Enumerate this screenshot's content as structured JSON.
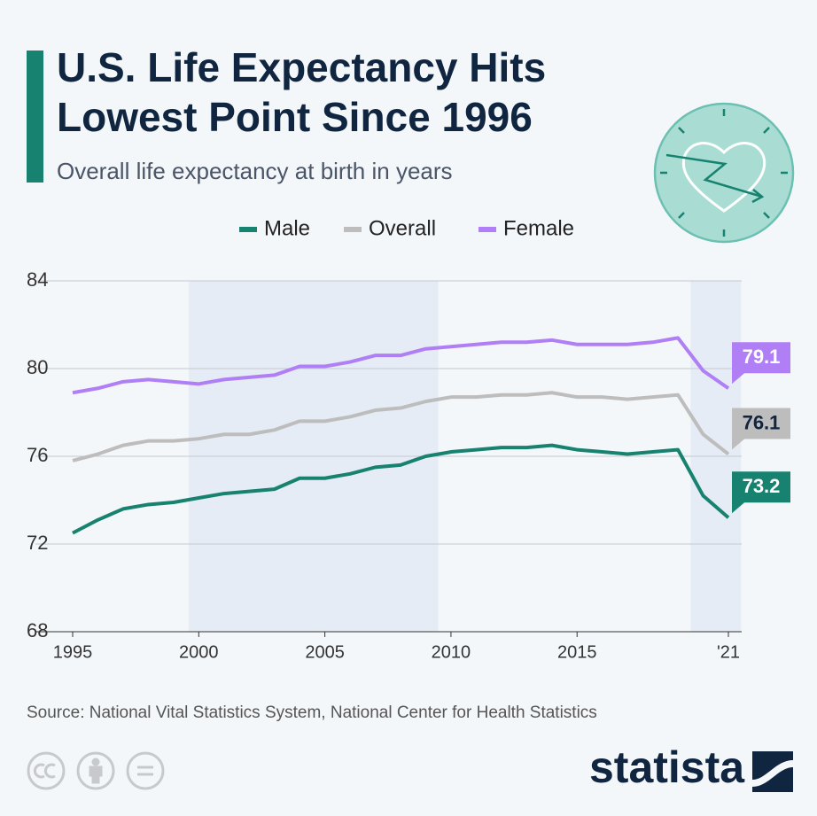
{
  "chart_data": {
    "type": "line",
    "title": [
      "U.S. Life Expectancy Hits",
      "Lowest Point Since 1996"
    ],
    "subtitle": "Overall life expectancy at birth in years",
    "x": [
      1995,
      1996,
      1997,
      1998,
      1999,
      2000,
      2001,
      2002,
      2003,
      2004,
      2005,
      2006,
      2007,
      2008,
      2009,
      2010,
      2011,
      2012,
      2013,
      2014,
      2015,
      2016,
      2017,
      2018,
      2019,
      2020,
      2021
    ],
    "series": [
      {
        "name": "Male",
        "color": "#17826f",
        "label_text": "#ffffff",
        "values": [
          72.5,
          73.1,
          73.6,
          73.8,
          73.9,
          74.1,
          74.3,
          74.4,
          74.5,
          75.0,
          75.0,
          75.2,
          75.5,
          75.6,
          76.0,
          76.2,
          76.3,
          76.4,
          76.4,
          76.5,
          76.3,
          76.2,
          76.1,
          76.2,
          76.3,
          74.2,
          73.2
        ]
      },
      {
        "name": "Overall",
        "color": "#bdbdbd",
        "label_text": "#0f2540",
        "values": [
          75.8,
          76.1,
          76.5,
          76.7,
          76.7,
          76.8,
          77.0,
          77.0,
          77.2,
          77.6,
          77.6,
          77.8,
          78.1,
          78.2,
          78.5,
          78.7,
          78.7,
          78.8,
          78.8,
          78.9,
          78.7,
          78.7,
          78.6,
          78.7,
          78.8,
          77.0,
          76.1
        ]
      },
      {
        "name": "Female",
        "color": "#b07ff5",
        "label_text": "#ffffff",
        "values": [
          78.9,
          79.1,
          79.4,
          79.5,
          79.4,
          79.3,
          79.5,
          79.6,
          79.7,
          80.1,
          80.1,
          80.3,
          80.6,
          80.6,
          80.9,
          81.0,
          81.1,
          81.2,
          81.2,
          81.3,
          81.1,
          81.1,
          81.1,
          81.2,
          81.4,
          79.9,
          79.1
        ]
      }
    ],
    "xlim": [
      1995,
      2021
    ],
    "xticks": [
      1995,
      2000,
      2005,
      2010,
      2015,
      {
        "value": 2021,
        "label": "'21"
      }
    ],
    "ylim": [
      68,
      84
    ],
    "yticks": [
      68,
      72,
      76,
      80,
      84
    ],
    "grid": true,
    "shaded_ranges": [
      [
        1999.6,
        2009.5
      ],
      [
        2019.5,
        2021.5
      ]
    ],
    "source": "Source: National Vital Statistics System, National Center for Health Statistics",
    "brand": "statista"
  }
}
